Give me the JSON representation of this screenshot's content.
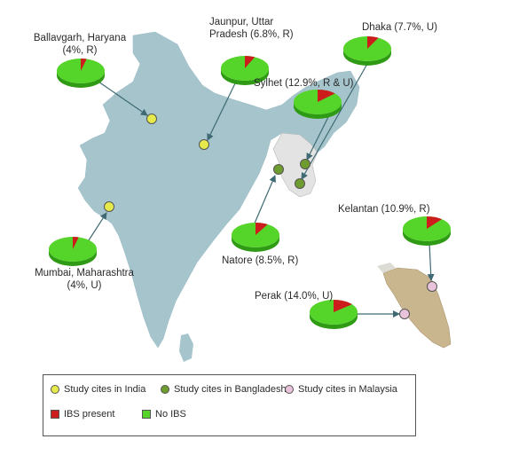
{
  "sites": [
    {
      "id": "ballavgarh",
      "line1": "Ballavgarh, Haryana",
      "line2": "(4%, R)",
      "ibs_percent": 4,
      "country": "India"
    },
    {
      "id": "jaunpur",
      "line1": "Jaunpur, Uttar",
      "line2": "Pradesh (6.8%, R)",
      "ibs_percent": 6.8,
      "country": "India"
    },
    {
      "id": "mumbai",
      "line1": "Mumbai, Maharashtra",
      "line2": "(4%, U)",
      "ibs_percent": 4,
      "country": "India"
    },
    {
      "id": "sylhet",
      "line1": "Sylhet (12.9%, R & U)",
      "line2": "",
      "ibs_percent": 12.9,
      "country": "Bangladesh"
    },
    {
      "id": "dhaka",
      "line1": "Dhaka (7.7%, U)",
      "line2": "",
      "ibs_percent": 7.7,
      "country": "Bangladesh"
    },
    {
      "id": "natore",
      "line1": "Natore (8.5%, R)",
      "line2": "",
      "ibs_percent": 8.5,
      "country": "Bangladesh"
    },
    {
      "id": "kelantan",
      "line1": "Kelantan (10.9%, R)",
      "line2": "",
      "ibs_percent": 10.9,
      "country": "Malaysia"
    },
    {
      "id": "perak",
      "line1": "Perak (14.0%, U)",
      "line2": "",
      "ibs_percent": 14.0,
      "country": "Malaysia"
    }
  ],
  "legend": {
    "india": "Study cites in India",
    "bangladesh": "Study cites in Bangladesh",
    "malaysia": "Study cites in Malaysia",
    "ibs": "IBS present",
    "noibs": "No IBS"
  },
  "colors": {
    "india_land": "#a5c4cc",
    "bangladesh_land": "#e3e3e3",
    "malaysia_land": "#c9b58e",
    "india_dot": "#e6e94a",
    "bangladesh_dot": "#6f9c2e",
    "malaysia_dot": "#e9c3dc",
    "ibs": "#cc1c1c",
    "noibs": "#55d42a",
    "noibs_dark": "#2f9a14",
    "arrow": "#3f6a73"
  }
}
